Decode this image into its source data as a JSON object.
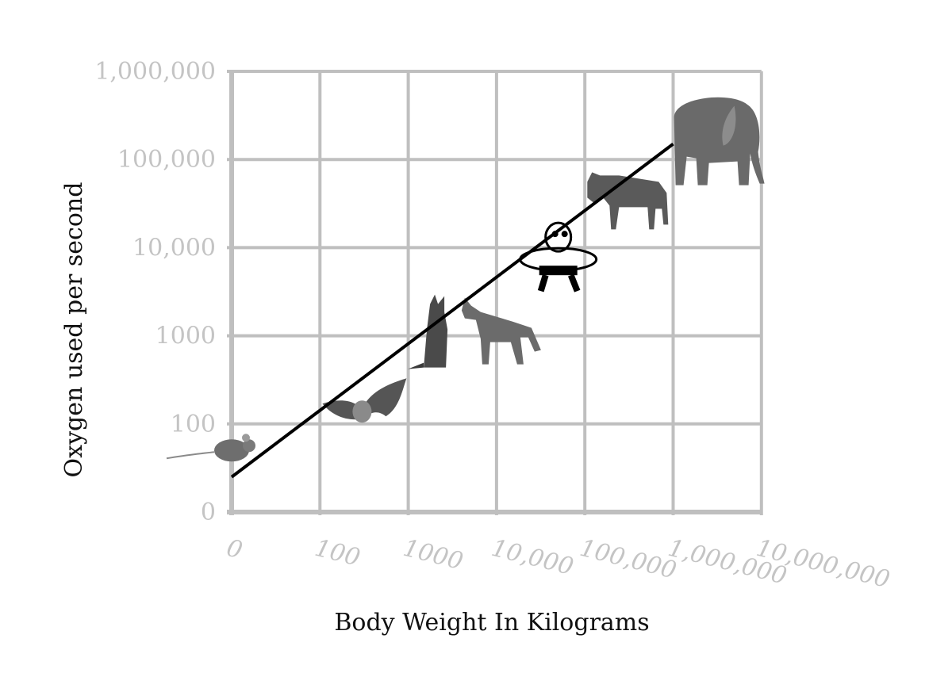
{
  "chart_data": {
    "type": "line",
    "title": "",
    "xlabel": "Body Weight In Kilograms",
    "ylabel": "Oxygen used per second",
    "x_tick_labels": [
      "0",
      "100",
      "1000",
      "10,000",
      "100,000",
      "1,000,000",
      "10,000,000"
    ],
    "y_tick_labels": [
      "0",
      "100",
      "1000",
      "10,000",
      "100,000",
      "1,000,000"
    ],
    "grid": true,
    "legend": "none",
    "series": [
      {
        "x": [
          0,
          1000000
        ],
        "y": [
          25,
          150000
        ]
      }
    ],
    "annotations": [
      {
        "icon": "mouse-icon",
        "x": 5,
        "y": 50
      },
      {
        "icon": "bat-icon",
        "x": 300,
        "y": 150
      },
      {
        "icon": "fox-icon",
        "x": 2000,
        "y": 1000
      },
      {
        "icon": "coyote-icon",
        "x": 10000,
        "y": 1000
      },
      {
        "icon": "cartoon-person-icon",
        "x": 50000,
        "y": 8000
      },
      {
        "icon": "wildebeest-icon",
        "x": 300000,
        "y": 30000
      },
      {
        "icon": "elephant-icon",
        "x": 3000000,
        "y": 150000
      }
    ],
    "colors": {
      "grid": "#bfbfbf",
      "tick_labels": "#c4c4c4",
      "line": "#000000",
      "axis_title": "#111111"
    }
  }
}
